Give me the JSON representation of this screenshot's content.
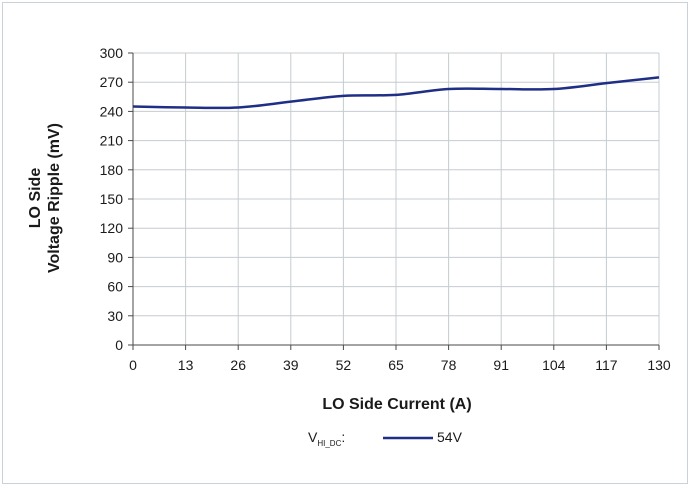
{
  "chart_data": {
    "type": "line",
    "xlabel": "LO Side Current (A)",
    "ylabel_line1": "LO Side",
    "ylabel_line2": "Voltage Ripple (mV)",
    "xlim": [
      0,
      130
    ],
    "ylim": [
      0,
      300
    ],
    "x_ticks": [
      0,
      13,
      26,
      39,
      52,
      65,
      78,
      91,
      104,
      117,
      130
    ],
    "y_ticks": [
      0,
      30,
      60,
      90,
      120,
      150,
      180,
      210,
      240,
      270,
      300
    ],
    "grid": true,
    "legend": {
      "label_main": "V",
      "label_sub": "HI_DC",
      "label_suffix": ":",
      "position": "bottom-center"
    },
    "series": [
      {
        "name": "54V",
        "color": "#1f2f86",
        "x": [
          0,
          13,
          26,
          39,
          52,
          65,
          78,
          91,
          104,
          117,
          130
        ],
        "y": [
          245,
          244,
          244,
          250,
          256,
          257,
          263,
          263,
          263,
          269,
          275
        ]
      }
    ]
  }
}
